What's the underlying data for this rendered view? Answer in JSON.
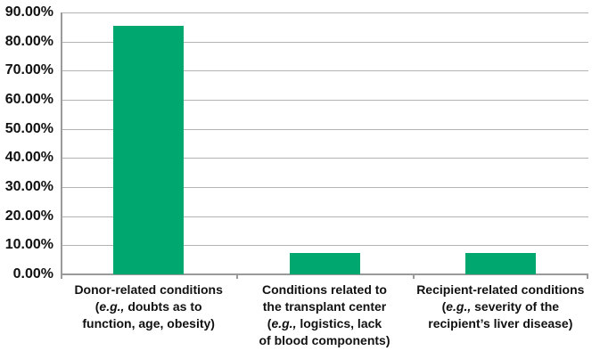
{
  "chart_data": {
    "type": "bar",
    "title": "",
    "xlabel": "",
    "ylabel": "",
    "legend": false,
    "grid": true,
    "ylim": [
      0,
      90
    ],
    "ytick_step": 10,
    "yticks": [
      {
        "value": 0,
        "label": "0.00%"
      },
      {
        "value": 10,
        "label": "10.00%"
      },
      {
        "value": 20,
        "label": "20.00%"
      },
      {
        "value": 30,
        "label": "30.00%"
      },
      {
        "value": 40,
        "label": "40.00%"
      },
      {
        "value": 50,
        "label": "50.00%"
      },
      {
        "value": 60,
        "label": "60.00%"
      },
      {
        "value": 70,
        "label": "70.00%"
      },
      {
        "value": 80,
        "label": "80.00%"
      },
      {
        "value": 90,
        "label": "90.00%"
      }
    ],
    "categories": [
      {
        "lines": [
          "Donor-related conditions",
          "(e.g., doubts as to",
          "function, age, obesity)"
        ]
      },
      {
        "lines": [
          "Conditions related to",
          "the transplant center",
          "(e.g., logistics, lack",
          "of blood components)"
        ]
      },
      {
        "lines": [
          "Recipient-related conditions",
          "(e.g., severity of the",
          "recipient’s liver disease)"
        ]
      }
    ],
    "values": [
      85.5,
      7.5,
      7.5
    ],
    "italic_token": "e.g.,",
    "colors": {
      "bar": "#00a76e",
      "gridline": "#b3b3b3",
      "axis": "#9a9a9a",
      "text": "#111111"
    }
  }
}
